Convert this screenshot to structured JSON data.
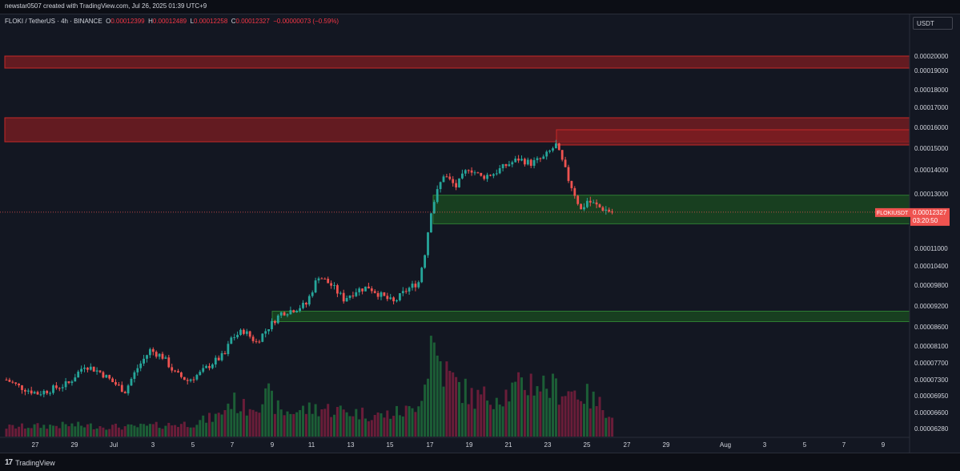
{
  "header": {
    "creator": "newstar0507 created with TradingView.com, Jul 26, 2025 01:39 UTC+9"
  },
  "legend": {
    "symbol": "FLOKI / TetherUS · 4h · BINANCE",
    "o_label": "O",
    "o": "0.00012399",
    "h_label": "H",
    "h": "0.00012489",
    "l_label": "L",
    "l": "0.00012258",
    "c_label": "C",
    "c": "0.00012327",
    "change": "−0.00000073 (−0.59%)"
  },
  "currency": "USDT",
  "last_price": {
    "ticker": "FLOKIUSDT",
    "price": "0.00012327",
    "countdown": "03:20:50"
  },
  "footer": {
    "brand": "TradingView"
  },
  "colors": {
    "up": "#26a69a",
    "down": "#ef5350",
    "background": "#131722",
    "zone_red": "#8b1a1f",
    "zone_green": "#1b5e20"
  },
  "chart_data": {
    "type": "candlestick",
    "interval": "4h",
    "y_ticks": [
      "0.00020000",
      "0.00019000",
      "0.00018000",
      "0.00017000",
      "0.00016000",
      "0.00015000",
      "0.00014000",
      "0.00013000",
      "0.00011000",
      "0.00010400",
      "0.00009800",
      "0.00009200",
      "0.00008600",
      "0.00008100",
      "0.00007700",
      "0.00007300",
      "0.00006950",
      "0.00006600",
      "0.00006280"
    ],
    "x_ticks": [
      "27",
      "29",
      "Jul",
      "3",
      "5",
      "7",
      "9",
      "11",
      "13",
      "15",
      "17",
      "19",
      "21",
      "23",
      "25",
      "27",
      "29",
      "Aug",
      "3",
      "5",
      "7",
      "9"
    ],
    "zones": [
      {
        "color": "red",
        "from_tick": "0.00019000",
        "to_tick": "0.00020000"
      },
      {
        "color": "red",
        "from_tick": "0.00015000",
        "to_tick": "0.00016000"
      },
      {
        "color": "red",
        "from_tick": "0.00015000",
        "to_tick": "0.00016000"
      },
      {
        "color": "green",
        "from": 0.000119,
        "to": 0.0001295
      },
      {
        "color": "green",
        "from": 8.75e-05,
        "to": 9.05e-05
      }
    ],
    "price_path": [
      [
        0,
        7.3e-05
      ],
      [
        4,
        7.15e-05
      ],
      [
        10,
        7e-05
      ],
      [
        14,
        7.08e-05
      ],
      [
        20,
        7.22e-05
      ],
      [
        25,
        7.65e-05
      ],
      [
        30,
        7.48e-05
      ],
      [
        34,
        7.25e-05
      ],
      [
        38,
        7.05e-05
      ],
      [
        42,
        7.58e-05
      ],
      [
        46,
        8e-05
      ],
      [
        50,
        7.85e-05
      ],
      [
        54,
        7.45e-05
      ],
      [
        58,
        7.28e-05
      ],
      [
        62,
        7.45e-05
      ],
      [
        66,
        7.7e-05
      ],
      [
        70,
        7.9e-05
      ],
      [
        72,
        8.3e-05
      ],
      [
        76,
        8.5e-05
      ],
      [
        80,
        8.2e-05
      ],
      [
        84,
        8.6e-05
      ],
      [
        88,
        9e-05
      ],
      [
        92,
        9.1e-05
      ],
      [
        96,
        9.25e-05
      ],
      [
        100,
        0.000101
      ],
      [
        104,
        9.8e-05
      ],
      [
        108,
        9.4e-05
      ],
      [
        112,
        9.65e-05
      ],
      [
        116,
        9.75e-05
      ],
      [
        120,
        9.5e-05
      ],
      [
        124,
        9.3e-05
      ],
      [
        128,
        9.65e-05
      ],
      [
        132,
        9.9e-05
      ],
      [
        134,
        0.0001085
      ],
      [
        136,
        0.000124
      ],
      [
        140,
        0.000138
      ],
      [
        144,
        0.000133
      ],
      [
        148,
        0.000141
      ],
      [
        152,
        0.000137
      ],
      [
        156,
        0.0001385
      ],
      [
        160,
        0.000142
      ],
      [
        164,
        0.000145
      ],
      [
        168,
        0.000143
      ],
      [
        172,
        0.0001455
      ],
      [
        176,
        0.0001515
      ],
      [
        180,
        0.000136
      ],
      [
        184,
        0.000124
      ],
      [
        186,
        0.0001275
      ],
      [
        190,
        0.000125
      ],
      [
        194,
        0.0001233
      ]
    ],
    "volume_path": [
      [
        0,
        0.1
      ],
      [
        20,
        0.12
      ],
      [
        40,
        0.1
      ],
      [
        60,
        0.14
      ],
      [
        68,
        0.22
      ],
      [
        72,
        0.38
      ],
      [
        76,
        0.3
      ],
      [
        84,
        0.42
      ],
      [
        88,
        0.25
      ],
      [
        100,
        0.3
      ],
      [
        110,
        0.26
      ],
      [
        120,
        0.22
      ],
      [
        130,
        0.28
      ],
      [
        134,
        0.55
      ],
      [
        136,
        1.0
      ],
      [
        140,
        0.7
      ],
      [
        144,
        0.55
      ],
      [
        150,
        0.4
      ],
      [
        160,
        0.45
      ],
      [
        168,
        0.58
      ],
      [
        176,
        0.5
      ],
      [
        184,
        0.46
      ],
      [
        194,
        0.25
      ]
    ]
  }
}
